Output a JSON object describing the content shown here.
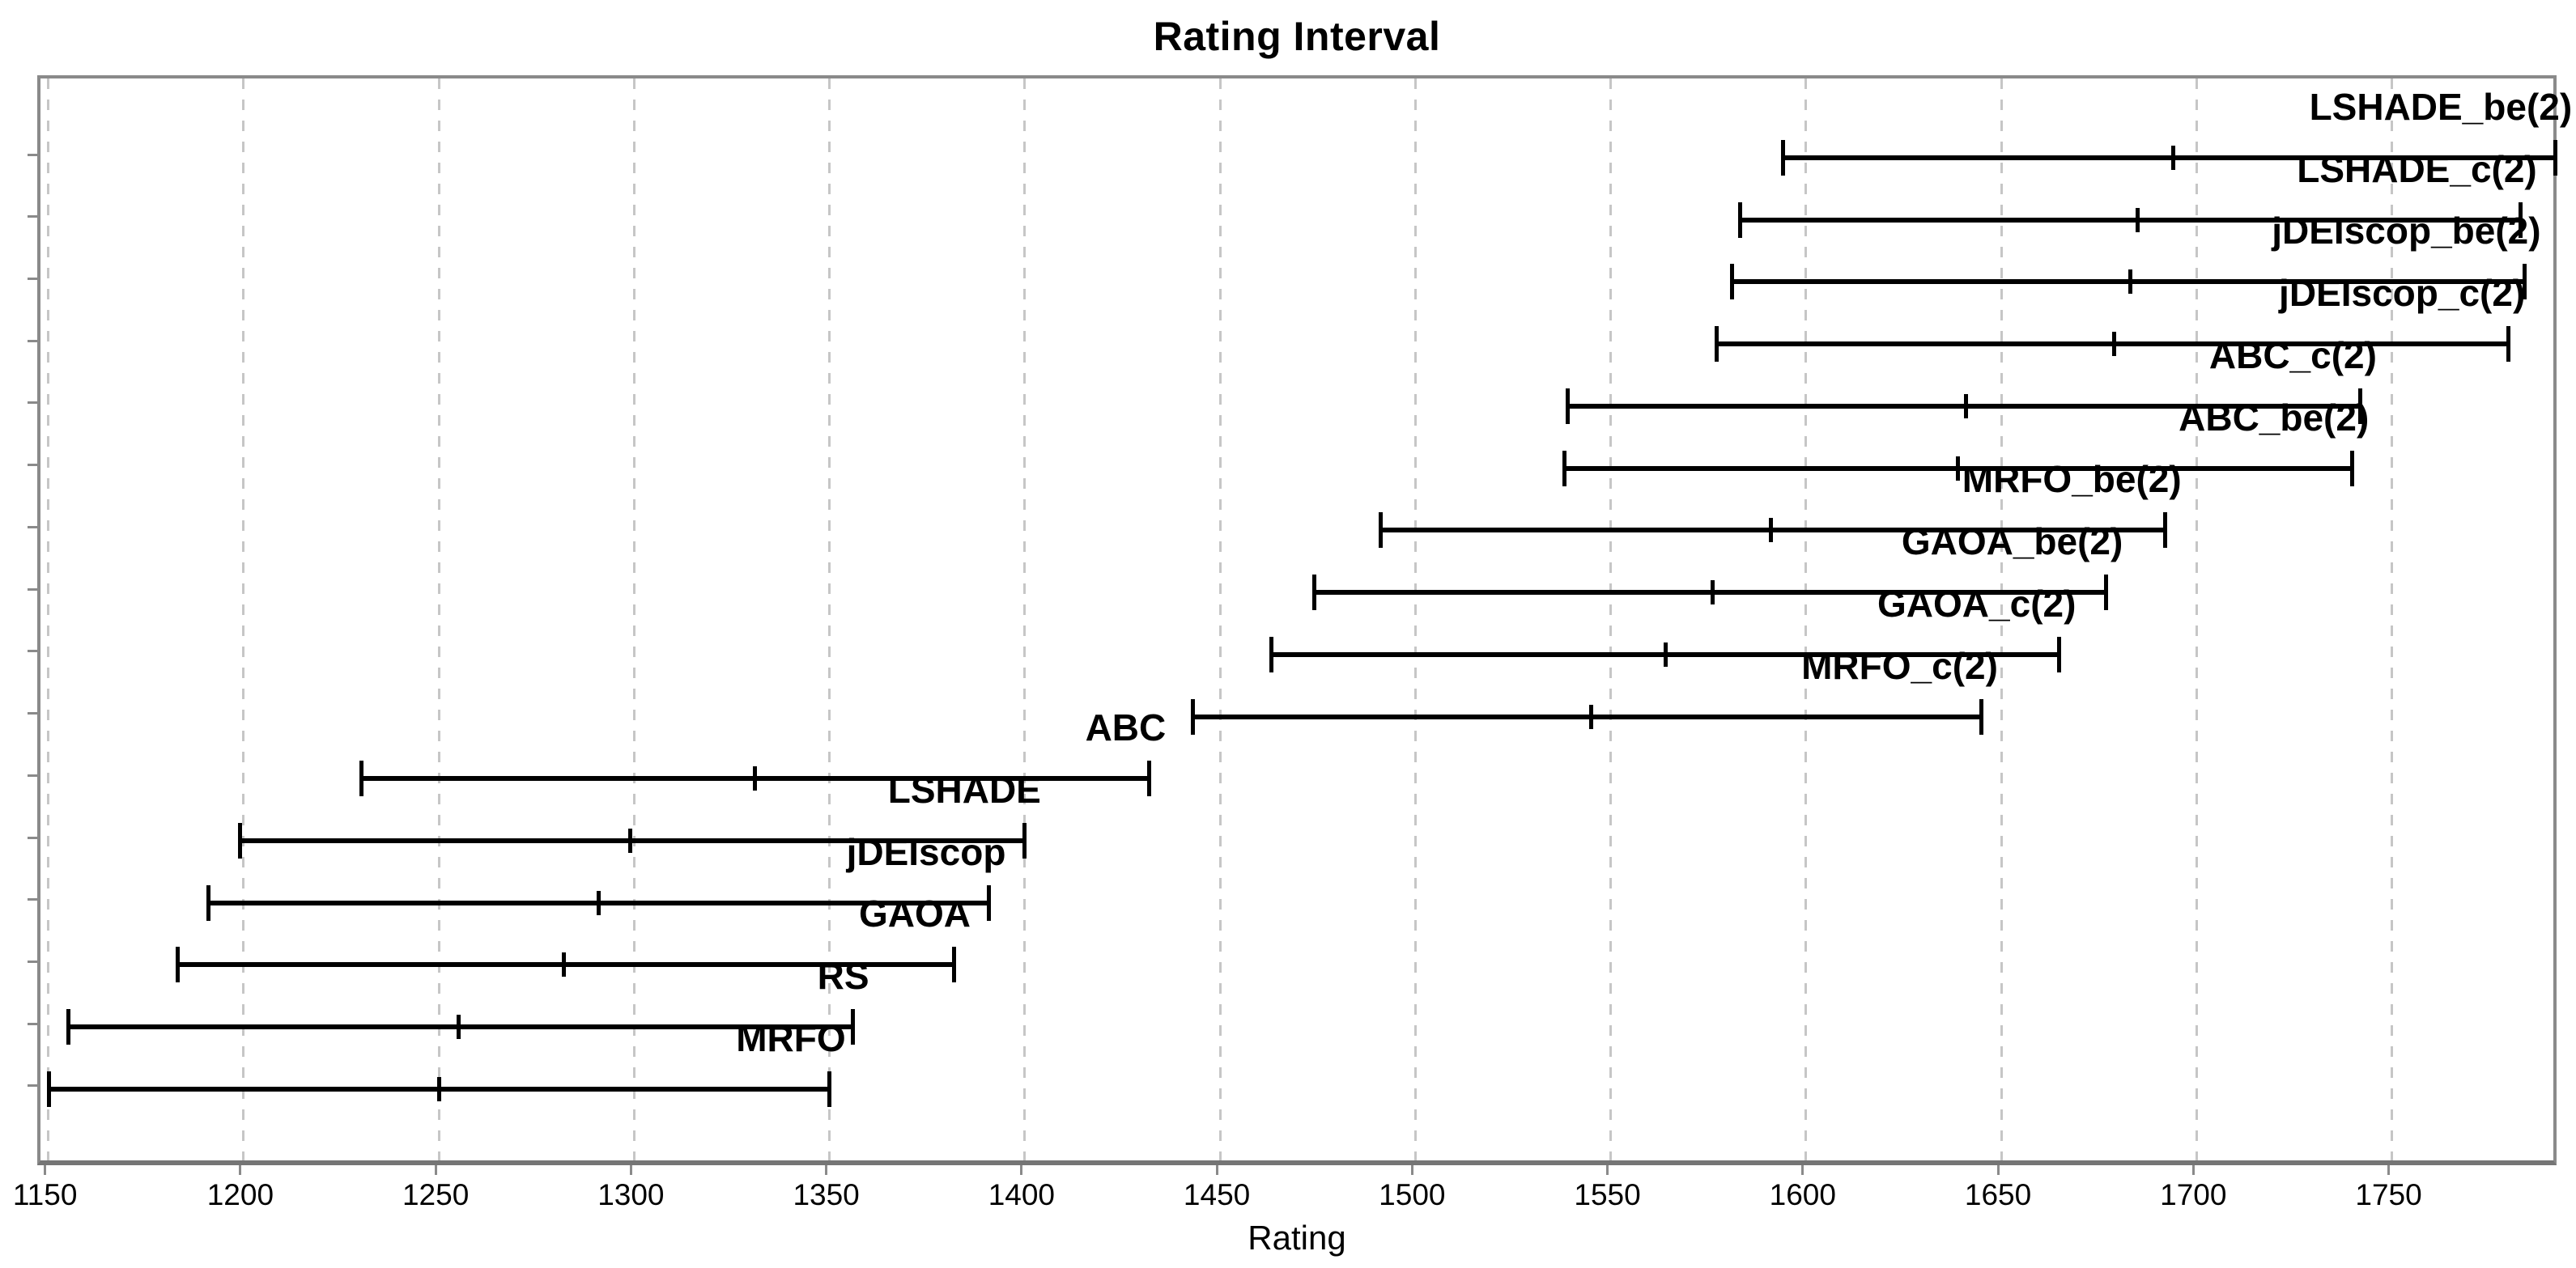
{
  "title": "Rating Interval",
  "xlabel": "Rating",
  "colors": {
    "interval": "#000000",
    "axis": "#8a8a8a",
    "grid": "#c6c6c6",
    "text": "#000000",
    "background": "#ffffff"
  },
  "chart_data": {
    "type": "scatter",
    "style": "horizontal rating intervals (center estimate with lower/upper bound caps)",
    "title": "Rating Interval",
    "xlabel": "Rating",
    "ylabel": "",
    "xlim": [
      1148,
      1793
    ],
    "x_ticks": [
      1150,
      1200,
      1250,
      1300,
      1350,
      1400,
      1450,
      1500,
      1550,
      1600,
      1650,
      1700,
      1750
    ],
    "grid": true,
    "legend": false,
    "rows_top_to_bottom": [
      {
        "label": "LSHADE_be(2)",
        "low": 1594,
        "mid": 1694,
        "high": 1792
      },
      {
        "label": "LSHADE_c(2)",
        "low": 1583,
        "mid": 1685,
        "high": 1783
      },
      {
        "label": "jDEIscop_be(2)",
        "low": 1581,
        "mid": 1683,
        "high": 1784
      },
      {
        "label": "jDEIscop_c(2)",
        "low": 1577,
        "mid": 1679,
        "high": 1780
      },
      {
        "label": "ABC_c(2)",
        "low": 1539,
        "mid": 1641,
        "high": 1742
      },
      {
        "label": "ABC_be(2)",
        "low": 1538,
        "mid": 1639,
        "high": 1740
      },
      {
        "label": "MRFO_be(2)",
        "low": 1491,
        "mid": 1591,
        "high": 1692
      },
      {
        "label": "GAOA_be(2)",
        "low": 1474,
        "mid": 1576,
        "high": 1677
      },
      {
        "label": "GAOA_c(2)",
        "low": 1463,
        "mid": 1564,
        "high": 1665
      },
      {
        "label": "MRFO_c(2)",
        "low": 1443,
        "mid": 1545,
        "high": 1645
      },
      {
        "label": "ABC",
        "low": 1230,
        "mid": 1331,
        "high": 1432
      },
      {
        "label": "LSHADE",
        "low": 1199,
        "mid": 1299,
        "high": 1400
      },
      {
        "label": "jDEIscop",
        "low": 1191,
        "mid": 1291,
        "high": 1391
      },
      {
        "label": "GAOA",
        "low": 1183,
        "mid": 1282,
        "high": 1382
      },
      {
        "label": "RS",
        "low": 1155,
        "mid": 1255,
        "high": 1356
      },
      {
        "label": "MRFO",
        "low": 1150,
        "mid": 1250,
        "high": 1350
      }
    ]
  }
}
